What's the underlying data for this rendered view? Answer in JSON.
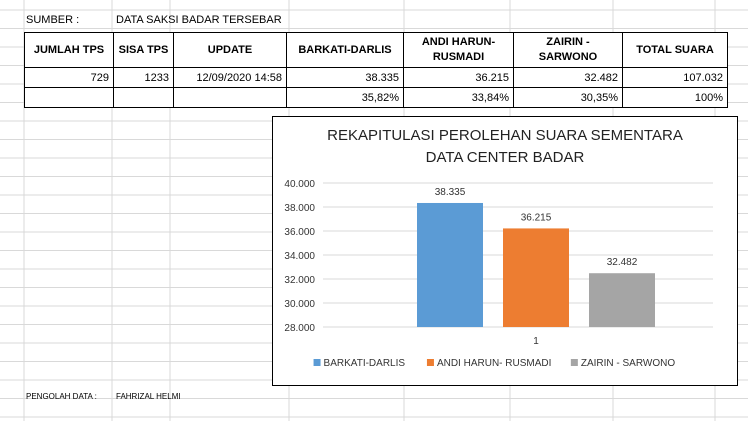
{
  "sheet": {
    "source_label": "SUMBER :",
    "source_value": "DATA SAKSI BADAR TERSEBAR",
    "footer_label": "PENGOLAH DATA :",
    "footer_value": "FAHRIZAL HELMI"
  },
  "table": {
    "headers": [
      "JUMLAH TPS",
      "SISA TPS",
      "UPDATE",
      "BARKATI-DARLIS",
      "ANDI HARUN-\nRUSMADI",
      "ZAIRIN -\nSARWONO",
      "TOTAL SUARA"
    ],
    "values": [
      "729",
      "1233",
      "12/09/2020 14:58",
      "38.335",
      "36.215",
      "32.482",
      "107.032"
    ],
    "percents": [
      "",
      "",
      "",
      "35,82%",
      "33,84%",
      "30,35%",
      "100%"
    ]
  },
  "chart_data": {
    "type": "bar",
    "title": "REKAPITULASI PEROLEHAN SUARA SEMENTARA",
    "subtitle": "DATA CENTER BADAR",
    "categories": [
      "1"
    ],
    "series": [
      {
        "name": "BARKATI-DARLIS",
        "values": [
          38335
        ],
        "label": "38.335",
        "color": "#5B9BD5"
      },
      {
        "name": "ANDI HARUN- RUSMADI",
        "values": [
          36215
        ],
        "label": "36.215",
        "color": "#ED7D31"
      },
      {
        "name": "ZAIRIN - SARWONO",
        "values": [
          32482
        ],
        "label": "32.482",
        "color": "#A5A5A5"
      }
    ],
    "ylim": [
      28000,
      40000
    ],
    "yticks": [
      28000,
      30000,
      32000,
      34000,
      36000,
      38000,
      40000
    ],
    "ytick_labels": [
      "28.000",
      "30.000",
      "32.000",
      "34.000",
      "36.000",
      "38.000",
      "40.000"
    ],
    "grid": true,
    "legend": "bottom"
  }
}
